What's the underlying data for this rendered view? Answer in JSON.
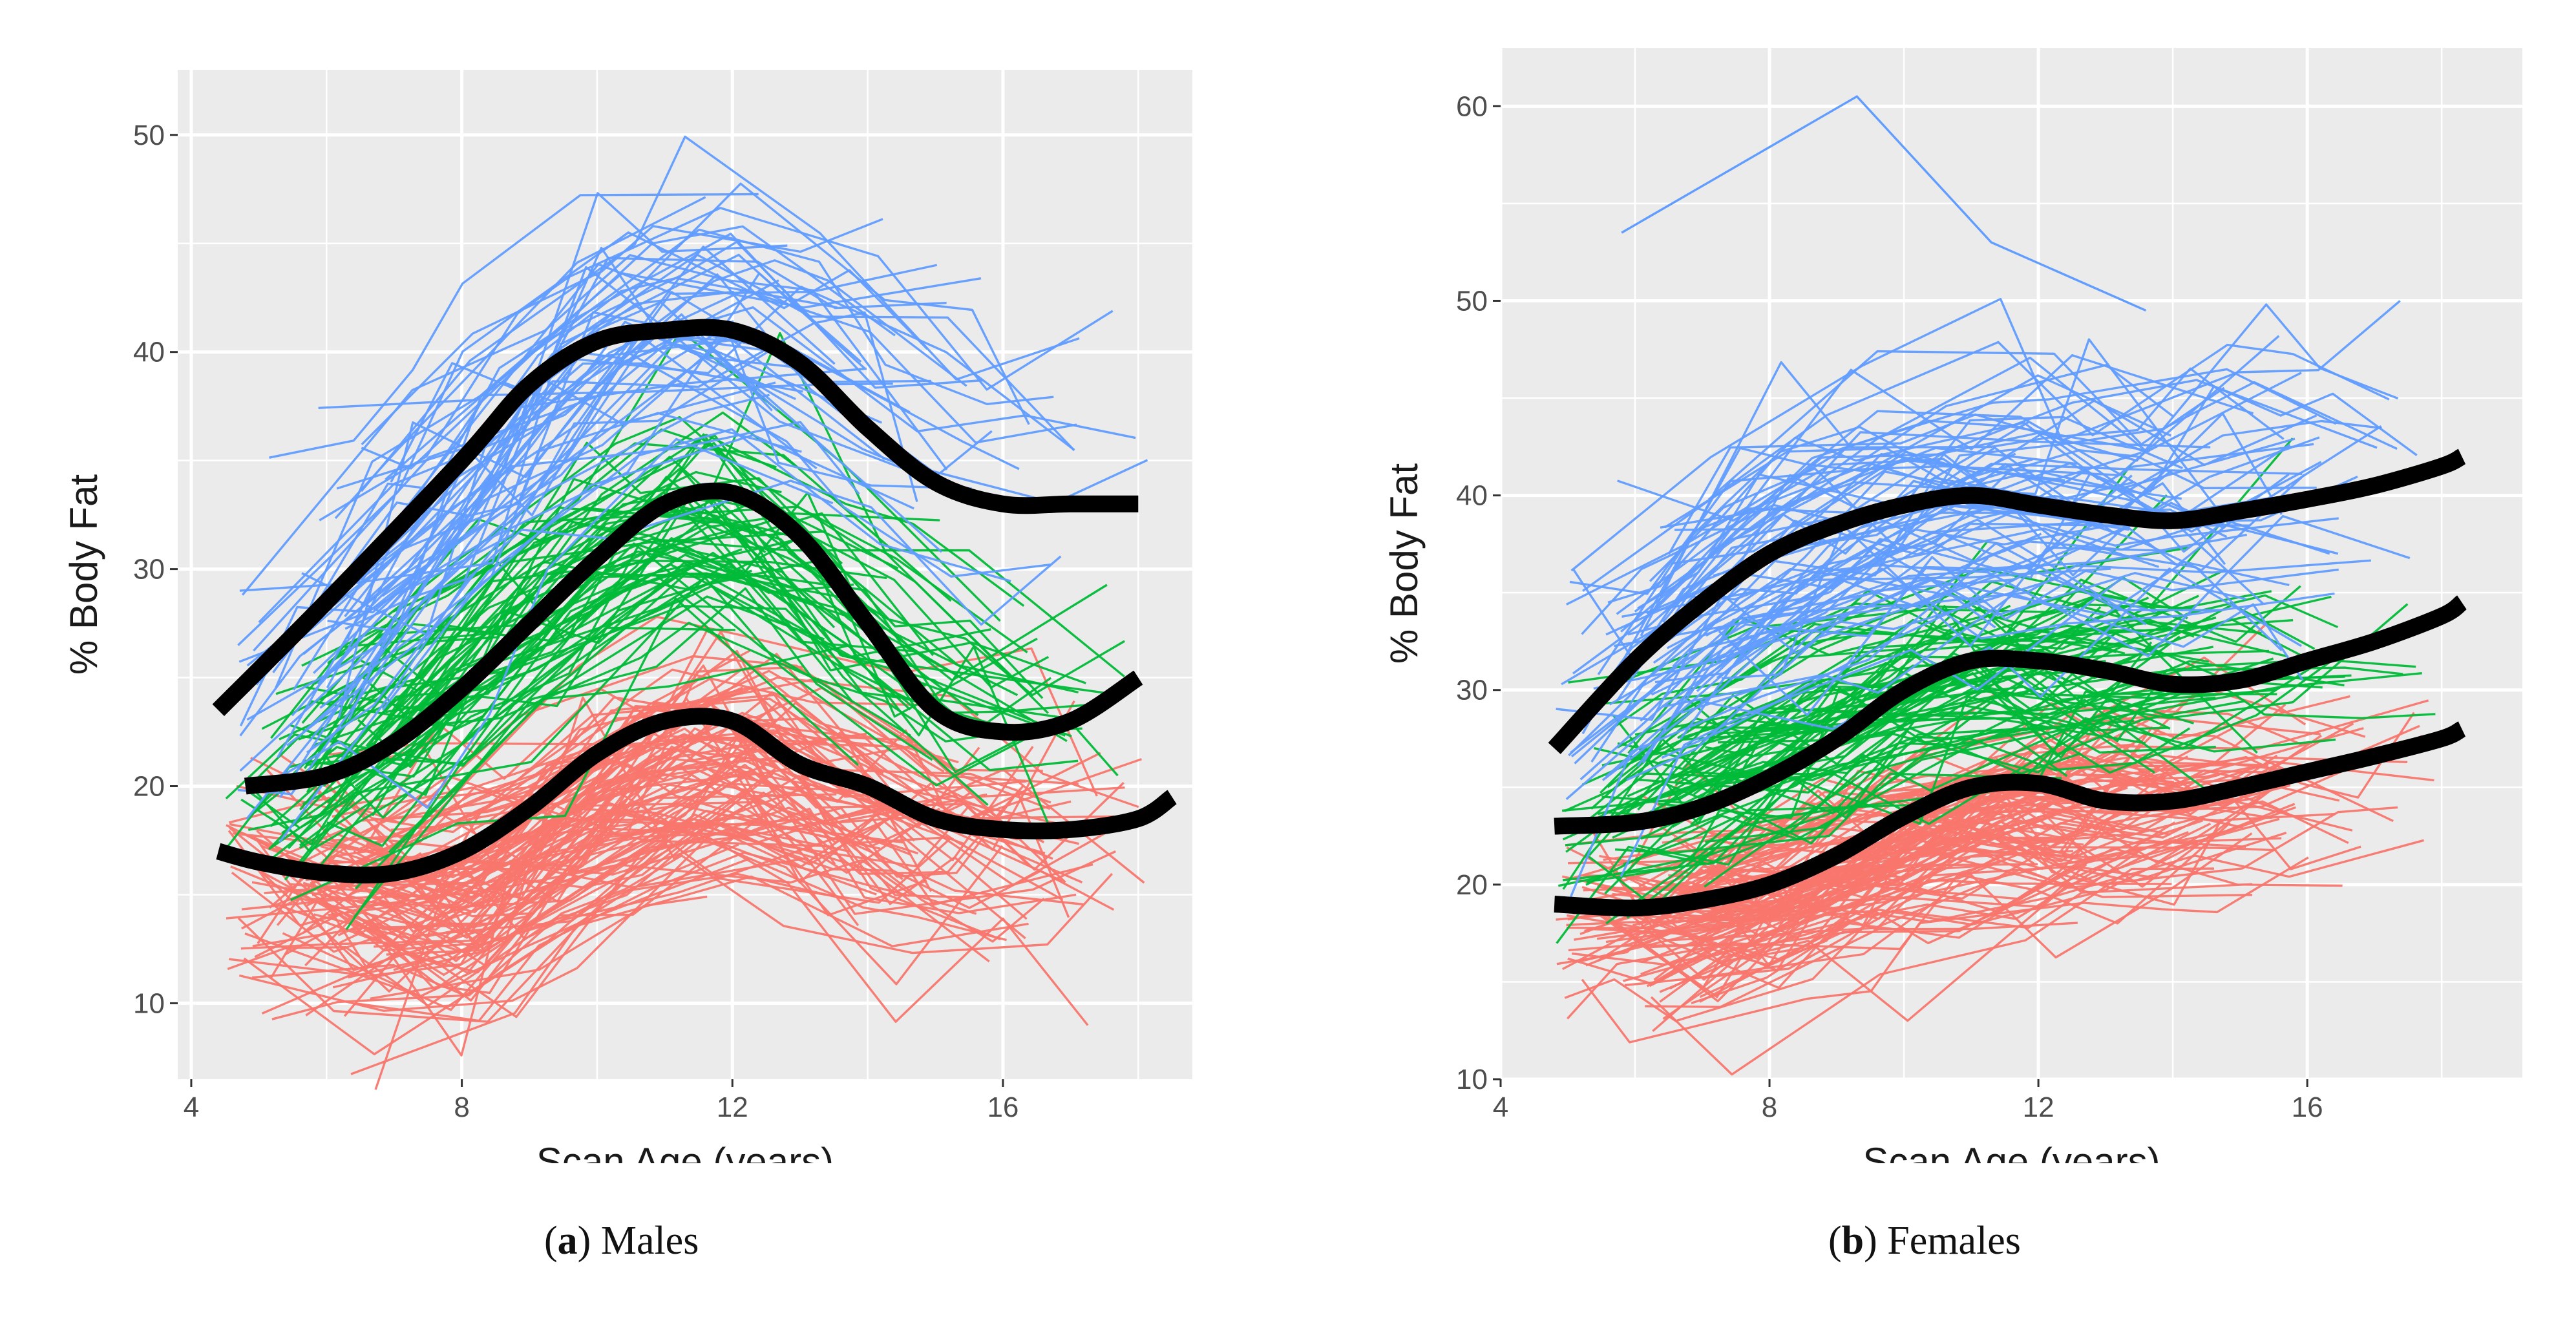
{
  "figure": {
    "colors": {
      "panel_bg": "#ebebeb",
      "grid": "#ffffff",
      "group_low": "#f8766d",
      "group_mid": "#00ba38",
      "group_high": "#619cff",
      "mean_curve": "#000000"
    }
  },
  "captions": [
    {
      "letter": "a",
      "label": "Males"
    },
    {
      "letter": "b",
      "label": "Females"
    }
  ],
  "chart_data": [
    {
      "type": "line",
      "panel": "a",
      "title": "Males",
      "xlabel": "Scan Age (years)",
      "ylabel": "% Body Fat",
      "xlim": [
        3.8,
        18.8
      ],
      "ylim": [
        6.5,
        53
      ],
      "xticks": [
        4,
        8,
        12,
        16
      ],
      "yticks": [
        10,
        20,
        30,
        40,
        50
      ],
      "grid": true,
      "legend": "none",
      "spaghetti": {
        "xrange": [
          4.5,
          18.5
        ],
        "groups": [
          {
            "name": "group_low",
            "color": "#f8766d",
            "count": 120,
            "ages": [
              5,
              8,
              11,
              12,
              14,
              16,
              18
            ],
            "means": [
              16,
              14.5,
              21,
              22,
              18.5,
              17,
              17.5
            ],
            "spread": 3.2,
            "jitter": 1.8
          },
          {
            "name": "group_mid",
            "color": "#00ba38",
            "count": 70,
            "ages": [
              5,
              8,
              10,
              12,
              14,
              16,
              18
            ],
            "means": [
              19,
              25,
              31,
              33,
              28,
              24,
              25
            ],
            "spread": 3.5,
            "jitter": 2.0
          },
          {
            "name": "group_high",
            "color": "#619cff",
            "count": 60,
            "ages": [
              5,
              8,
              10,
              12,
              14,
              16,
              18
            ],
            "means": [
              24,
              33,
              40,
              41,
              37,
              34,
              34
            ],
            "spread": 5.0,
            "jitter": 2.2
          }
        ]
      },
      "series": [
        {
          "name": "high fitted trajectory",
          "x": [
            4.4,
            6,
            8,
            9,
            10,
            11,
            12,
            13,
            14,
            15,
            16,
            17,
            18
          ],
          "y": [
            23.5,
            28.5,
            35,
            38.5,
            40.5,
            41,
            41,
            39.5,
            36.5,
            34,
            33,
            33,
            33
          ]
        },
        {
          "name": "mid fitted trajectory",
          "x": [
            4.8,
            6,
            7,
            8,
            9,
            10,
            11,
            12,
            13,
            14,
            15,
            16,
            17,
            18
          ],
          "y": [
            20,
            20.5,
            22,
            24.5,
            27.5,
            30.5,
            33,
            33.5,
            31.5,
            27.5,
            23.5,
            22.5,
            23,
            25
          ]
        },
        {
          "name": "low fitted trajectory",
          "x": [
            4.4,
            5,
            6,
            7,
            8,
            9,
            10,
            11,
            12,
            13,
            14,
            15,
            16,
            17,
            18,
            18.5
          ],
          "y": [
            17,
            16.5,
            16,
            16,
            17,
            19,
            21.5,
            23,
            23,
            21,
            20,
            18.5,
            18,
            18,
            18.5,
            19.5
          ]
        }
      ]
    },
    {
      "type": "line",
      "panel": "b",
      "title": "Females",
      "xlabel": "Scan Age (years)",
      "ylabel": "% Body Fat",
      "xlim": [
        4,
        19.2
      ],
      "ylim": [
        10,
        63
      ],
      "xticks": [
        4,
        8,
        12,
        16
      ],
      "yticks": [
        10,
        20,
        30,
        40,
        50,
        60
      ],
      "grid": true,
      "legend": "none",
      "spaghetti": {
        "xrange": [
          4.8,
          18.3
        ],
        "groups": [
          {
            "name": "group_low",
            "color": "#f8766d",
            "count": 120,
            "ages": [
              5,
              8,
              11,
              14,
              18
            ],
            "means": [
              18,
              19,
              23,
              24,
              26.5
            ],
            "spread": 2.8,
            "jitter": 1.6
          },
          {
            "name": "group_mid",
            "color": "#00ba38",
            "count": 80,
            "ages": [
              5,
              8,
              11,
              14,
              18
            ],
            "means": [
              23,
              27,
              31,
              31,
              33.5
            ],
            "spread": 2.8,
            "jitter": 1.8
          },
          {
            "name": "group_high",
            "color": "#619cff",
            "count": 80,
            "ages": [
              5,
              8,
              11,
              14,
              18
            ],
            "means": [
              29,
              37,
              40,
              40,
              42
            ],
            "spread": 4.8,
            "jitter": 2.0
          }
        ],
        "outlier": {
          "x": [
            5.8,
            9.3,
            11.3,
            13.6
          ],
          "y": [
            53.5,
            60.5,
            53,
            49.5
          ]
        }
      },
      "series": [
        {
          "name": "high fitted trajectory",
          "x": [
            4.8,
            6,
            7,
            8,
            9,
            10,
            11,
            12,
            13,
            14,
            15,
            16,
            17,
            18,
            18.3
          ],
          "y": [
            27,
            31.5,
            34.5,
            37,
            38.5,
            39.5,
            40,
            39.5,
            39,
            38.7,
            39.2,
            39.8,
            40.5,
            41.5,
            42
          ]
        },
        {
          "name": "mid fitted trajectory",
          "x": [
            4.8,
            6,
            7,
            8,
            9,
            10,
            11,
            12,
            13,
            14,
            15,
            16,
            17,
            18,
            18.3
          ],
          "y": [
            23,
            23.2,
            24,
            25.5,
            27.5,
            30,
            31.5,
            31.5,
            31,
            30.3,
            30.5,
            31.5,
            32.5,
            33.8,
            34.5
          ]
        },
        {
          "name": "low fitted trajectory",
          "x": [
            4.8,
            6,
            7,
            8,
            9,
            10,
            11,
            12,
            13,
            14,
            15,
            16,
            17,
            18,
            18.3
          ],
          "y": [
            19,
            18.8,
            19.2,
            20,
            21.5,
            23.5,
            25,
            25.2,
            24.3,
            24.3,
            25,
            25.8,
            26.6,
            27.5,
            28
          ]
        }
      ]
    }
  ]
}
